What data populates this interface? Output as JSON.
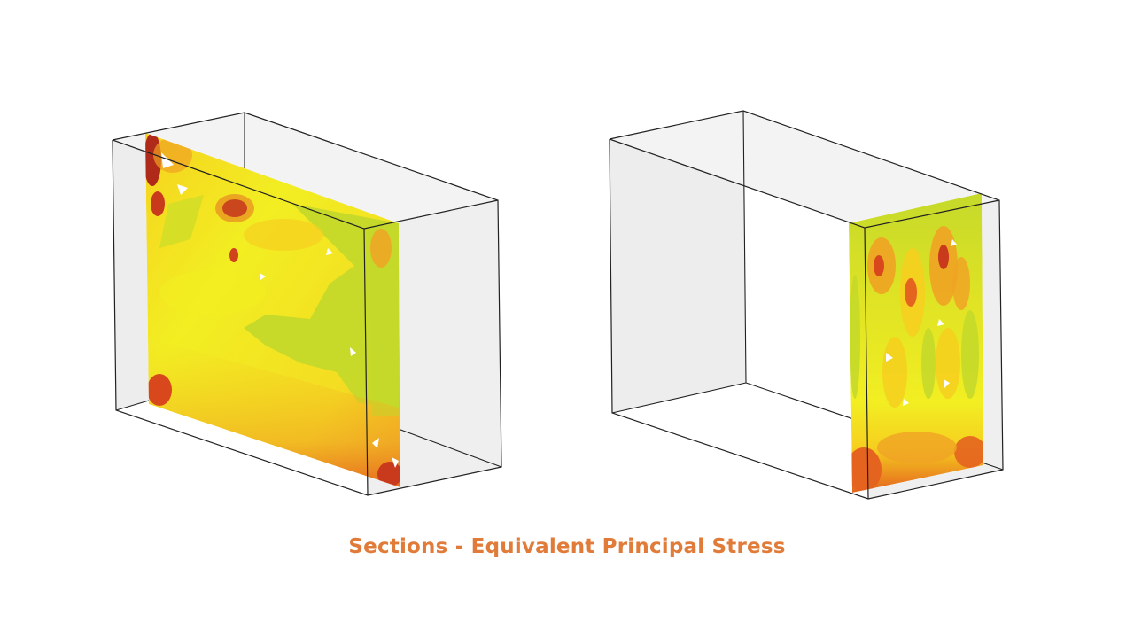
{
  "caption": "Sections - Equivalent Principal Stress",
  "colors": {
    "caption": "#e07b39",
    "box_fill": "#f0f0f0",
    "box_edge": "#222222",
    "stress_low": "#c5d92a",
    "stress_lowmid": "#f2ee22",
    "stress_mid": "#f6cf1f",
    "stress_midhigh": "#f0a324",
    "stress_high": "#e4631f",
    "stress_max": "#b02a1a"
  }
}
